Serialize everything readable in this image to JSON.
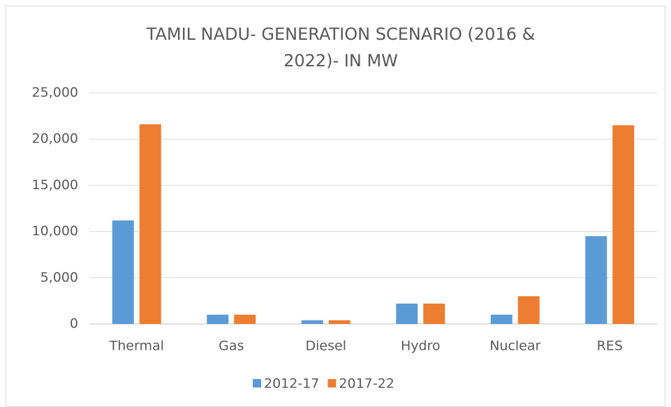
{
  "chart_data": {
    "type": "bar",
    "title": [
      "TAMIL NADU- GENERATION SCENARIO (2016 &",
      "2022)- IN MW"
    ],
    "categories": [
      "Thermal",
      "Gas",
      "Diesel",
      "Hydro",
      "Nuclear",
      "RES"
    ],
    "series": [
      {
        "name": "2012-17",
        "color": "#5b9bd5",
        "values": [
          11200,
          1000,
          400,
          2200,
          1000,
          9500
        ]
      },
      {
        "name": "2017-22",
        "color": "#ed7d31",
        "values": [
          21600,
          1000,
          400,
          2200,
          3000,
          21500
        ]
      }
    ],
    "ylim": [
      0,
      25000
    ],
    "yticks": [
      0,
      {
        "value": 5000,
        "label": "5,000"
      },
      {
        "value": 10000,
        "label": "10,000"
      },
      {
        "value": 15000,
        "label": "15,000"
      },
      {
        "value": 20000,
        "label": "20,000"
      },
      {
        "value": 25000,
        "label": "25,000"
      }
    ],
    "grid": true,
    "legend": "bottom"
  }
}
